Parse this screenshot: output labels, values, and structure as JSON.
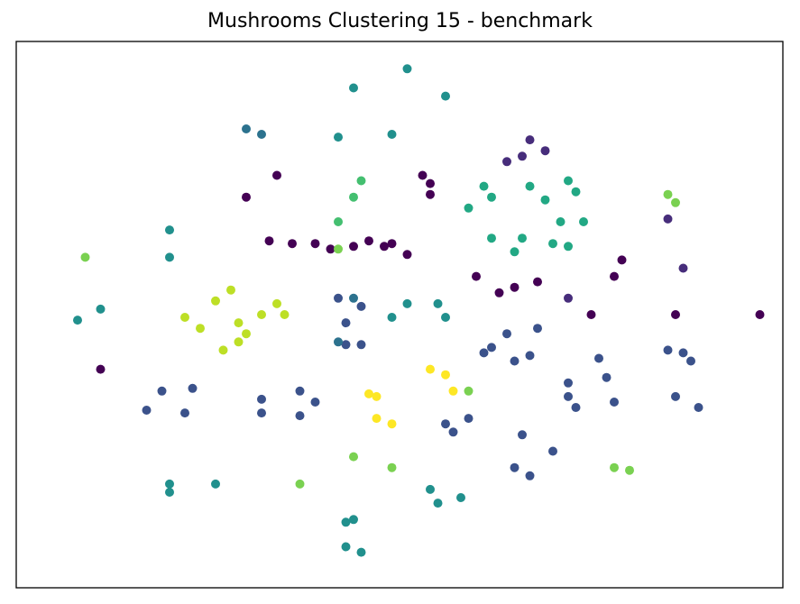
{
  "chart_data": {
    "type": "scatter",
    "title": "Mushrooms Clustering 15 - benchmark",
    "xlabel": "",
    "ylabel": "",
    "xlim": [
      0,
      100
    ],
    "ylim": [
      0,
      100
    ],
    "grid": false,
    "colormap": "viridis",
    "series": [
      {
        "color": "#440154",
        "points": [
          [
            34,
            75.5
          ],
          [
            30,
            71.5
          ],
          [
            33,
            63.5
          ],
          [
            36,
            63
          ],
          [
            39,
            63
          ],
          [
            41,
            62
          ],
          [
            48,
            62.5
          ],
          [
            51,
            61
          ],
          [
            49,
            63
          ],
          [
            44,
            62.5
          ],
          [
            46,
            63.5
          ],
          [
            53,
            75.5
          ],
          [
            54,
            74
          ],
          [
            54,
            72
          ],
          [
            60,
            57
          ],
          [
            63,
            54
          ],
          [
            65,
            55
          ],
          [
            68,
            56
          ],
          [
            79,
            60
          ],
          [
            78,
            57
          ],
          [
            75,
            50
          ],
          [
            86,
            50
          ],
          [
            97,
            50
          ],
          [
            11,
            40
          ]
        ]
      },
      {
        "color": "#472d7b",
        "points": [
          [
            67,
            82
          ],
          [
            69,
            80
          ],
          [
            66,
            79
          ],
          [
            64,
            78
          ],
          [
            85,
            67.5
          ],
          [
            87,
            58.5
          ],
          [
            72,
            53
          ]
        ]
      },
      {
        "color": "#3b528b",
        "points": [
          [
            42,
            53
          ],
          [
            45,
            51.5
          ],
          [
            43,
            48.5
          ],
          [
            43,
            44.5
          ],
          [
            45,
            44.5
          ],
          [
            64,
            46.5
          ],
          [
            62,
            44
          ],
          [
            68,
            47.5
          ],
          [
            67,
            42.5
          ],
          [
            65,
            41.5
          ],
          [
            61,
            43
          ],
          [
            19,
            36
          ],
          [
            23,
            36.5
          ],
          [
            17,
            32.5
          ],
          [
            22,
            32
          ],
          [
            37,
            36
          ],
          [
            39,
            34
          ],
          [
            32,
            34.5
          ],
          [
            32,
            32
          ],
          [
            37,
            31.5
          ],
          [
            56,
            30
          ],
          [
            59,
            31
          ],
          [
            57,
            28.5
          ],
          [
            66,
            28
          ],
          [
            70,
            25
          ],
          [
            65,
            22
          ],
          [
            67,
            20.5
          ],
          [
            85,
            43.5
          ],
          [
            87,
            43
          ],
          [
            88,
            41.5
          ],
          [
            86,
            35
          ],
          [
            89,
            33
          ],
          [
            76,
            42
          ],
          [
            77,
            38.5
          ],
          [
            72,
            37.5
          ],
          [
            72,
            35
          ],
          [
            78,
            34
          ],
          [
            73,
            33
          ]
        ]
      },
      {
        "color": "#2c728e",
        "points": [
          [
            30,
            84
          ],
          [
            32,
            83
          ],
          [
            42,
            45
          ],
          [
            44,
            53
          ]
        ]
      },
      {
        "color": "#21908d",
        "points": [
          [
            51,
            95
          ],
          [
            44,
            91.5
          ],
          [
            56,
            90
          ],
          [
            42,
            82.5
          ],
          [
            49,
            83
          ],
          [
            20,
            65.5
          ],
          [
            20,
            60.5
          ],
          [
            11,
            51
          ],
          [
            8,
            49
          ],
          [
            51,
            52
          ],
          [
            49,
            49.5
          ],
          [
            55,
            52
          ],
          [
            56,
            49.5
          ],
          [
            20,
            19
          ],
          [
            26,
            19
          ],
          [
            20,
            17.5
          ],
          [
            43,
            12
          ],
          [
            44,
            12.5
          ],
          [
            43,
            7.5
          ],
          [
            45,
            6.5
          ],
          [
            54,
            18
          ],
          [
            55,
            15.5
          ],
          [
            58,
            16.5
          ]
        ]
      },
      {
        "color": "#22a884",
        "points": [
          [
            61,
            73.5
          ],
          [
            62,
            71.5
          ],
          [
            59,
            69.5
          ],
          [
            67,
            73.5
          ],
          [
            69,
            71
          ],
          [
            72,
            74.5
          ],
          [
            73,
            72.5
          ],
          [
            71,
            67
          ],
          [
            74,
            67
          ],
          [
            62,
            64
          ],
          [
            66,
            64
          ],
          [
            65,
            61.5
          ],
          [
            70,
            63
          ],
          [
            72,
            62.5
          ]
        ]
      },
      {
        "color": "#44bf70",
        "points": [
          [
            45,
            74.5
          ],
          [
            44,
            71.5
          ],
          [
            42,
            67
          ]
        ]
      },
      {
        "color": "#7ad151",
        "points": [
          [
            9,
            60.5
          ],
          [
            85,
            72
          ],
          [
            86,
            70.5
          ],
          [
            59,
            36
          ],
          [
            37,
            19
          ],
          [
            44,
            24
          ],
          [
            49,
            22
          ],
          [
            78,
            22
          ],
          [
            80,
            21.5
          ],
          [
            42,
            62
          ]
        ]
      },
      {
        "color": "#bddf26",
        "points": [
          [
            28,
            54.5
          ],
          [
            26,
            52.5
          ],
          [
            22,
            49.5
          ],
          [
            24,
            47.5
          ],
          [
            29,
            48.5
          ],
          [
            30,
            46.5
          ],
          [
            34,
            52
          ],
          [
            35,
            50
          ],
          [
            32,
            50
          ],
          [
            27,
            43.5
          ],
          [
            29,
            45
          ]
        ]
      },
      {
        "color": "#fde725",
        "points": [
          [
            54,
            40
          ],
          [
            56,
            39
          ],
          [
            57,
            36
          ],
          [
            46,
            35.5
          ],
          [
            47,
            35
          ],
          [
            47,
            31
          ],
          [
            49,
            30
          ]
        ]
      }
    ]
  }
}
